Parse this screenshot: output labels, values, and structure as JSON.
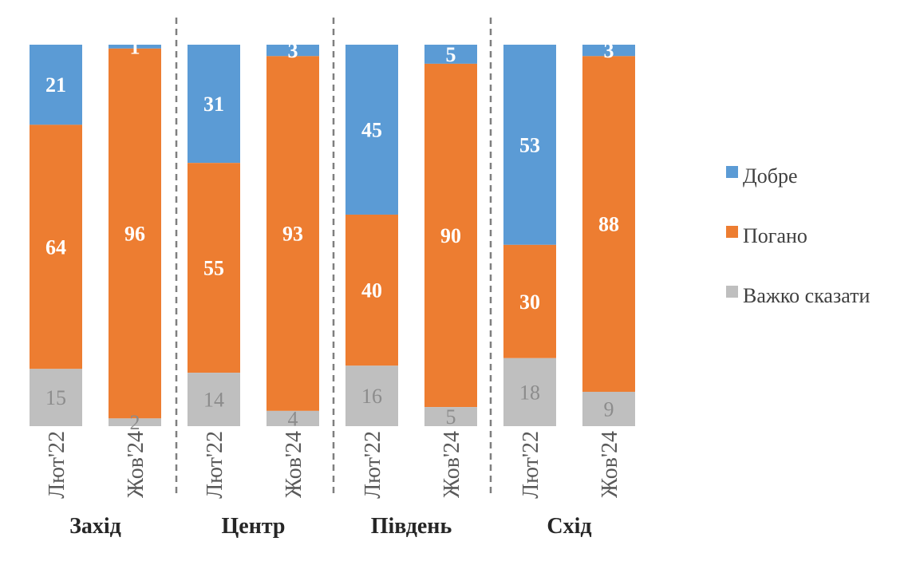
{
  "chart_data": {
    "type": "bar",
    "stacked": true,
    "percent": true,
    "series": [
      {
        "name": "Добре",
        "color": "#5b9bd5"
      },
      {
        "name": "Погано",
        "color": "#ed7d31"
      },
      {
        "name": "Важко сказати",
        "color": "#bfbfbf"
      }
    ],
    "groups": [
      {
        "region": "Захід",
        "bars": [
          {
            "label": "Лют'22",
            "values": [
              21,
              64,
              15
            ]
          },
          {
            "label": "Жов'24",
            "values": [
              1,
              96,
              2
            ]
          }
        ]
      },
      {
        "region": "Центр",
        "bars": [
          {
            "label": "Лют'22",
            "values": [
              31,
              55,
              14
            ]
          },
          {
            "label": "Жов'24",
            "values": [
              3,
              93,
              4
            ]
          }
        ]
      },
      {
        "region": "Південь",
        "bars": [
          {
            "label": "Лют'22",
            "values": [
              45,
              40,
              16
            ]
          },
          {
            "label": "Жов'24",
            "values": [
              5,
              90,
              5
            ]
          }
        ]
      },
      {
        "region": "Схід",
        "bars": [
          {
            "label": "Лют'22",
            "values": [
              53,
              30,
              18
            ]
          },
          {
            "label": "Жов'24",
            "values": [
              3,
              88,
              9
            ]
          }
        ]
      }
    ],
    "legend_position": "right"
  }
}
